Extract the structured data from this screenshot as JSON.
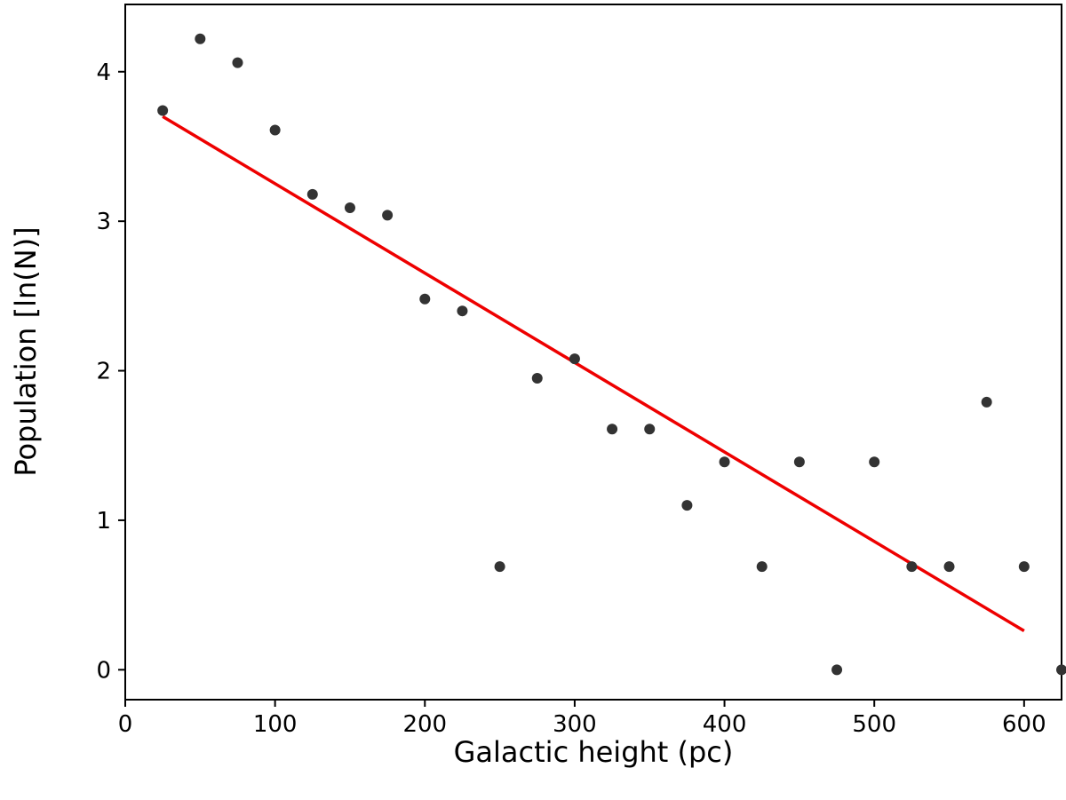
{
  "chart_data": {
    "type": "scatter",
    "title": "",
    "xlabel": "Galactic height (pc)",
    "ylabel": "Population [ln(N)]",
    "xlim": [
      0,
      625
    ],
    "ylim": [
      -0.2,
      4.45
    ],
    "xticks": [
      0,
      100,
      200,
      300,
      400,
      500,
      600
    ],
    "yticks": [
      0,
      1,
      2,
      3,
      4
    ],
    "grid": false,
    "legend": "none",
    "series": [
      {
        "type": "scatter",
        "color": "#333333",
        "points": [
          [
            25,
            3.74
          ],
          [
            50,
            4.22
          ],
          [
            75,
            4.06
          ],
          [
            100,
            3.61
          ],
          [
            125,
            3.18
          ],
          [
            150,
            3.09
          ],
          [
            175,
            3.04
          ],
          [
            200,
            2.48
          ],
          [
            225,
            2.4
          ],
          [
            250,
            0.69
          ],
          [
            275,
            1.95
          ],
          [
            300,
            2.08
          ],
          [
            325,
            1.61
          ],
          [
            350,
            1.61
          ],
          [
            375,
            1.1
          ],
          [
            400,
            1.39
          ],
          [
            425,
            0.69
          ],
          [
            450,
            1.39
          ],
          [
            475,
            0.0
          ],
          [
            500,
            1.39
          ],
          [
            525,
            0.69
          ],
          [
            550,
            0.69
          ],
          [
            575,
            1.79
          ],
          [
            600,
            0.69
          ],
          [
            625,
            0.0
          ]
        ]
      },
      {
        "type": "line",
        "color": "#ee0000",
        "points": [
          [
            25,
            3.7
          ],
          [
            600,
            0.26
          ]
        ]
      }
    ]
  }
}
